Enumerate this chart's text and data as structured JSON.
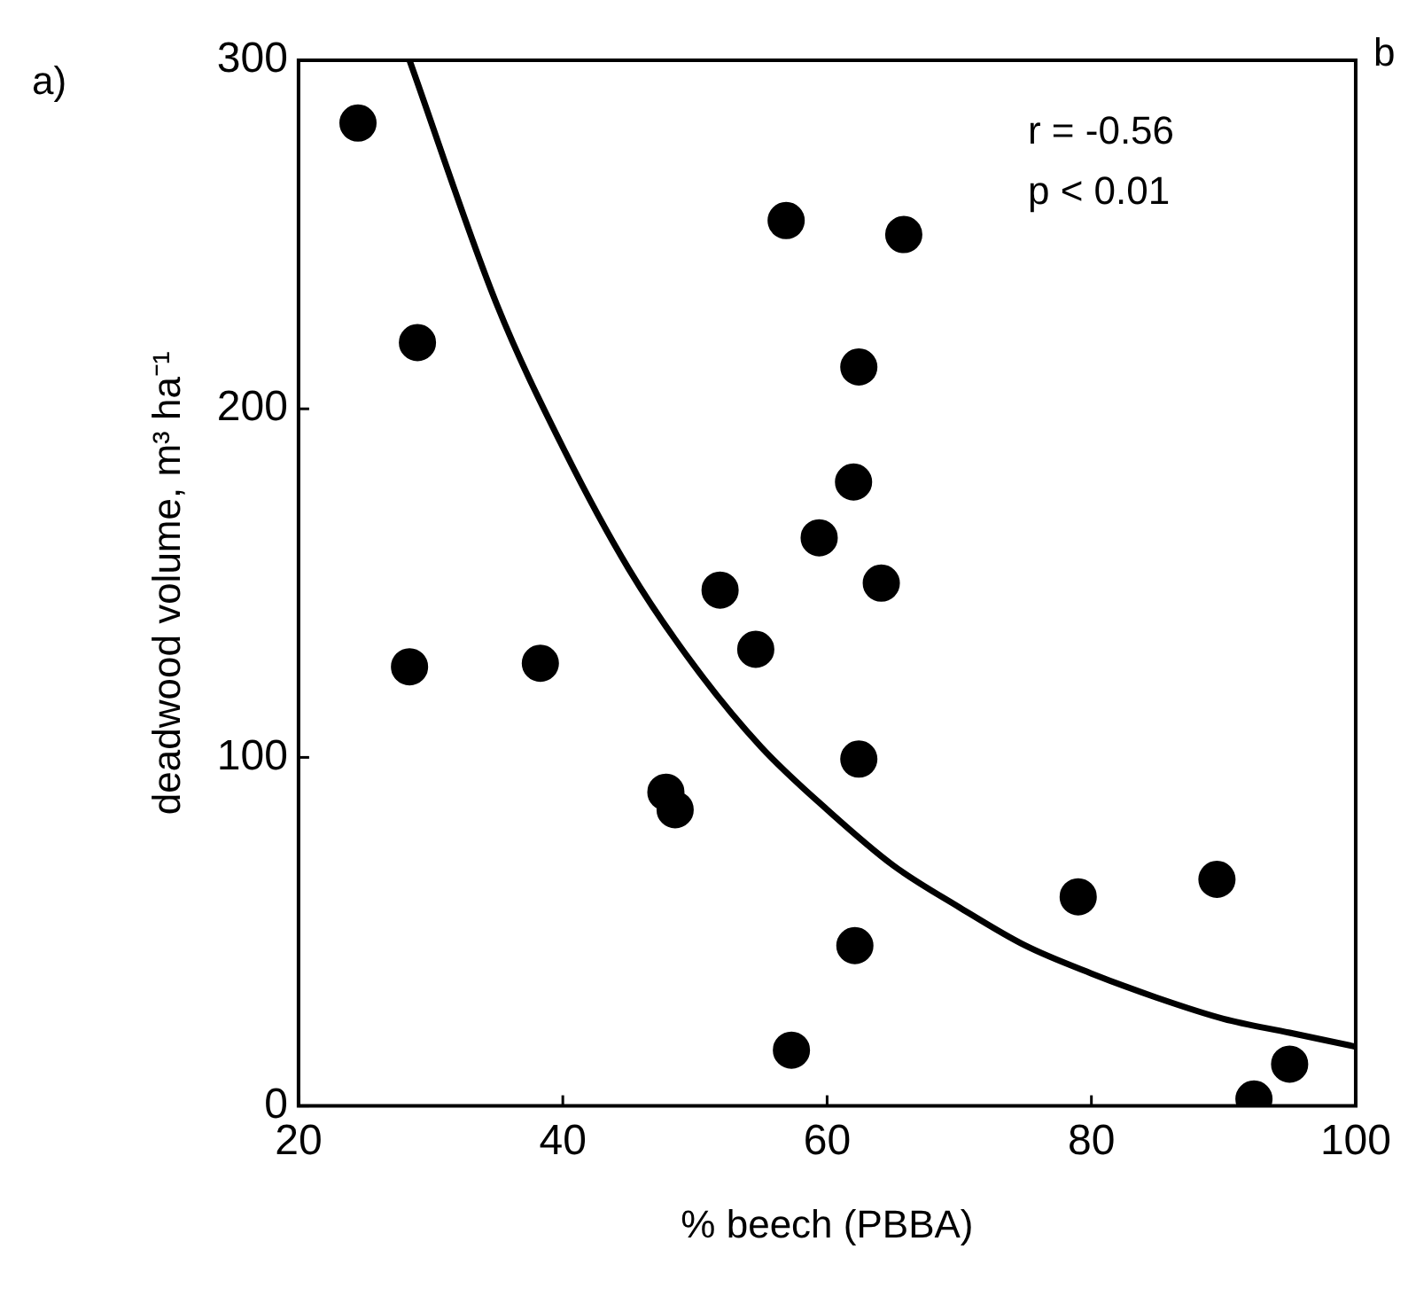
{
  "chart_data": {
    "type": "scatter",
    "xlabel": "% beech (PBBA)",
    "ylabel": "deadwood volume, m³ ha⁻¹",
    "annotations": [
      "a)",
      "b",
      "r = -0.56",
      "p < 0.01"
    ],
    "xlim": [
      20,
      100
    ],
    "xticks": [
      20,
      40,
      60,
      80,
      100
    ],
    "ylim": [
      0,
      300
    ],
    "yticks": [
      0,
      100,
      200,
      300
    ],
    "grid": false,
    "legend": false,
    "marker": "circle",
    "series": [
      {
        "type": "scatter",
        "color": "#000000",
        "x": [
          24.5,
          29,
          28.4,
          38.3,
          47.8,
          48.5,
          51.9,
          54.6,
          56.9,
          57.3,
          59.4,
          62,
          62.4,
          62.4,
          62.1,
          64.1,
          65.8,
          79,
          89.5,
          92.3,
          95
        ],
        "values": [
          282,
          219,
          126,
          127,
          90,
          85,
          148,
          131,
          254,
          16,
          163,
          179,
          212,
          99.5,
          46,
          150,
          250,
          60,
          65,
          2,
          12
        ]
      },
      {
        "type": "line",
        "color": "#000000",
        "marker": "none",
        "x": [
          28.4,
          35,
          40,
          45,
          50,
          55,
          60,
          65,
          70,
          75,
          80,
          85,
          90,
          95,
          100
        ],
        "values": [
          300,
          230,
          189,
          154,
          126,
          103,
          85,
          69,
          57,
          46,
          38,
          31,
          25,
          21,
          17
        ]
      }
    ]
  }
}
